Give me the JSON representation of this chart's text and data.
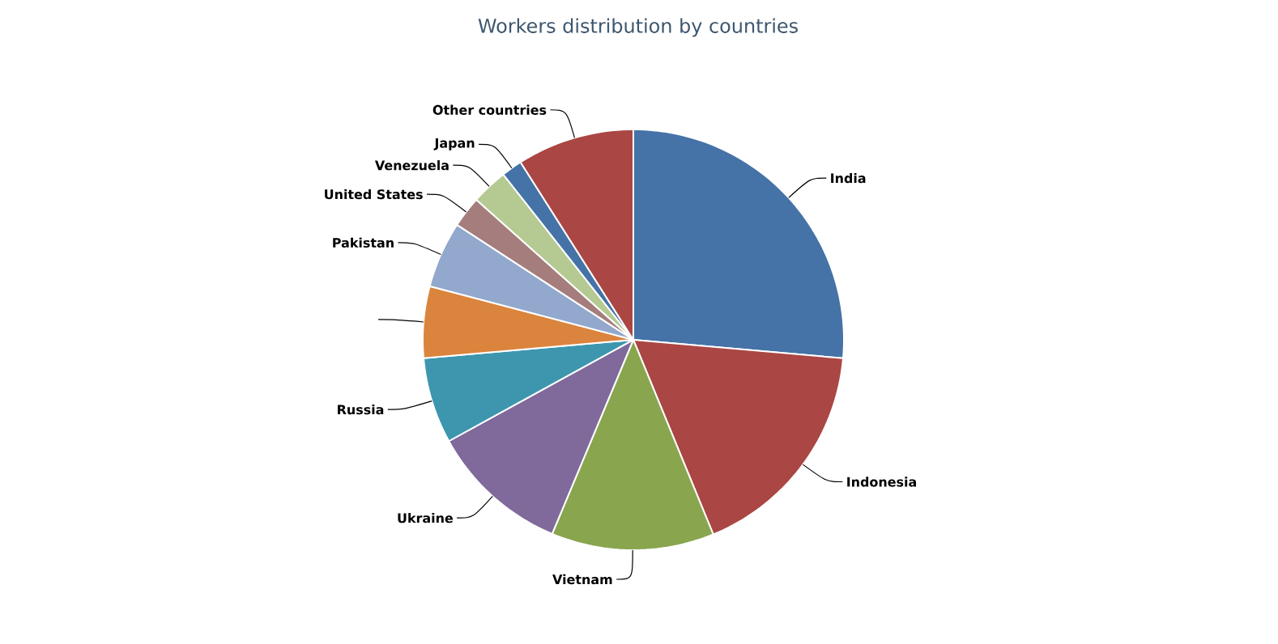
{
  "chart_data": {
    "type": "pie",
    "title": "Workers distribution by countries",
    "categories": [
      "India",
      "Indonesia",
      "Vietnam",
      "Ukraine",
      "Russia",
      null,
      "Pakistan",
      "United States",
      "Venezuela",
      "Japan",
      "Other countries"
    ],
    "values": [
      26.4,
      17.4,
      12.5,
      10.7,
      6.6,
      5.5,
      5.1,
      2.4,
      2.8,
      1.6,
      9.0
    ],
    "colors": [
      "#4572a7",
      "#aa4643",
      "#89a54e",
      "#80699b",
      "#3d96ae",
      "#db843d",
      "#92a8cd",
      "#a47d7c",
      "#b5ca92",
      "#4572a7",
      "#aa4643"
    ]
  }
}
